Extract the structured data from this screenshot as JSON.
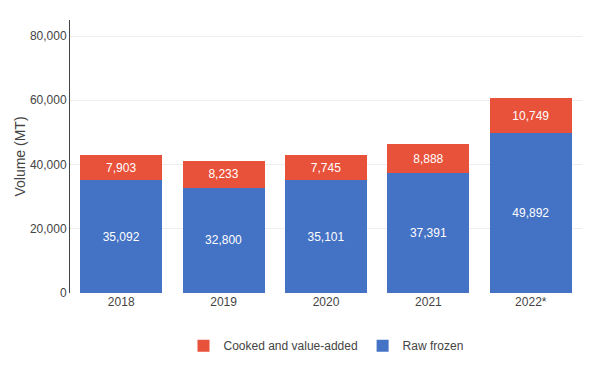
{
  "chart_data": {
    "type": "bar",
    "stacked": true,
    "categories": [
      "2018",
      "2019",
      "2020",
      "2021",
      "2022*"
    ],
    "series": [
      {
        "name": "Raw frozen",
        "color": "#4472C4",
        "values": [
          35092,
          32800,
          35101,
          37391,
          49892
        ],
        "value_labels": [
          "35,092",
          "32,800",
          "35,101",
          "37,391",
          "49,892"
        ]
      },
      {
        "name": "Cooked and value-added",
        "color": "#E8513A",
        "values": [
          7903,
          8233,
          7745,
          8888,
          10749
        ],
        "value_labels": [
          "7,903",
          "8,233",
          "7,745",
          "8,888",
          "10,749"
        ]
      }
    ],
    "ylabel": "Volume (MT)",
    "ylim": [
      0,
      85000
    ],
    "yticks": [
      0,
      {
        "value": 20000,
        "label": "20,000"
      },
      {
        "value": 40000,
        "label": "40,000"
      },
      {
        "value": 60000,
        "label": "60,000"
      },
      {
        "value": 80000,
        "label": "80,000"
      }
    ],
    "grid": true,
    "data_labels": true,
    "legend": "bottom"
  }
}
